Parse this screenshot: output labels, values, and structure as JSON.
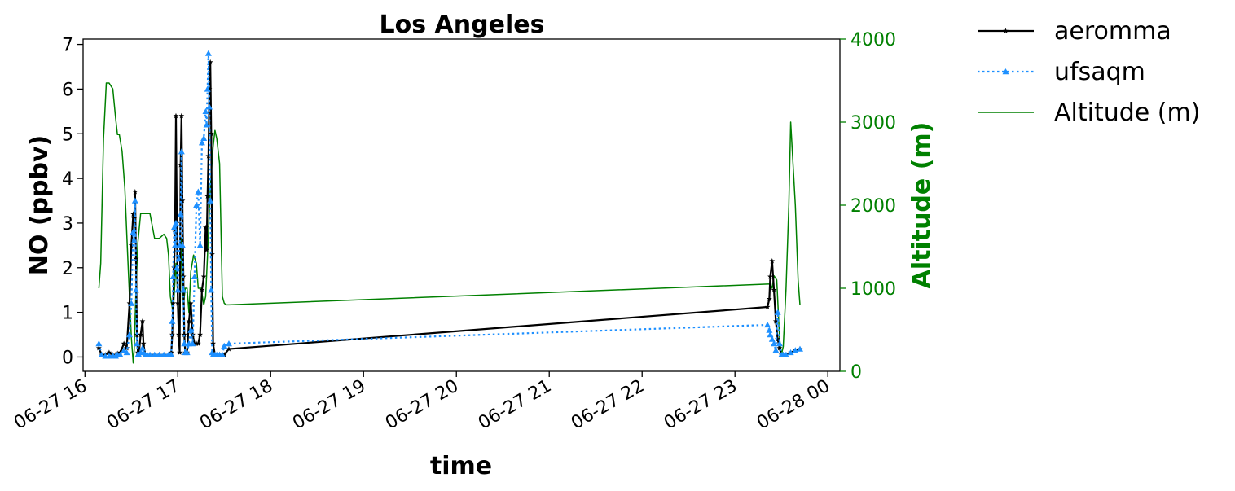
{
  "chart_data": {
    "type": "line",
    "title": "Los Angeles",
    "xlabel": "time",
    "ylabel": "NO (ppbv)",
    "y2label": "Altitude (m)",
    "x_domain_hours": [
      15.98,
      24.13
    ],
    "ylim": [
      -0.32,
      7.12
    ],
    "y2lim": [
      0,
      4000
    ],
    "x_ticks": [
      {
        "hour": 16,
        "label": "06-27 16"
      },
      {
        "hour": 17,
        "label": "06-27 17"
      },
      {
        "hour": 18,
        "label": "06-27 18"
      },
      {
        "hour": 19,
        "label": "06-27 19"
      },
      {
        "hour": 20,
        "label": "06-27 20"
      },
      {
        "hour": 21,
        "label": "06-27 21"
      },
      {
        "hour": 22,
        "label": "06-27 22"
      },
      {
        "hour": 23,
        "label": "06-27 23"
      },
      {
        "hour": 24,
        "label": "06-28 00"
      }
    ],
    "y_ticks": [
      0,
      1,
      2,
      3,
      4,
      5,
      6,
      7
    ],
    "y2_ticks": [
      0,
      1000,
      2000,
      3000,
      4000
    ],
    "legend_position": "outside-top-right",
    "grid": false,
    "series": [
      {
        "name": "aeromma",
        "axis": "left",
        "color": "#000000",
        "linestyle": "solid",
        "marker": "star",
        "x": [
          16.15,
          16.18,
          16.22,
          16.26,
          16.3,
          16.33,
          16.35,
          16.38,
          16.42,
          16.45,
          16.48,
          16.5,
          16.52,
          16.53,
          16.54,
          16.55,
          16.56,
          16.57,
          16.58,
          16.6,
          16.62,
          16.63,
          16.65,
          16.67,
          16.7,
          16.75,
          16.8,
          16.85,
          16.9,
          16.92,
          16.93,
          16.94,
          16.95,
          16.96,
          16.97,
          16.98,
          16.99,
          17.0,
          17.01,
          17.02,
          17.03,
          17.04,
          17.05,
          17.06,
          17.07,
          17.08,
          17.1,
          17.12,
          17.14,
          17.16,
          17.18,
          17.2,
          17.22,
          17.24,
          17.26,
          17.28,
          17.3,
          17.31,
          17.32,
          17.33,
          17.34,
          17.35,
          17.36,
          17.37,
          17.38,
          17.4,
          17.42,
          17.45,
          17.48,
          17.5,
          17.55,
          23.35,
          23.37,
          23.38,
          23.4,
          23.42,
          23.44,
          23.46,
          23.48,
          23.5,
          23.52,
          23.55,
          23.6,
          23.65,
          23.7
        ],
        "y": [
          0.2,
          0.05,
          0.05,
          0.1,
          0.05,
          0.05,
          0.08,
          0.1,
          0.3,
          0.2,
          1.2,
          2.5,
          3.2,
          3.1,
          3.7,
          2.2,
          0.5,
          0.1,
          0.05,
          0.5,
          0.8,
          0.3,
          0.05,
          0.05,
          0.05,
          0.05,
          0.05,
          0.05,
          0.05,
          0.05,
          0.1,
          0.5,
          1.2,
          2.0,
          2.8,
          5.4,
          3.0,
          1.2,
          0.5,
          0.1,
          4.3,
          5.4,
          3.5,
          1.8,
          0.5,
          0.1,
          0.1,
          0.8,
          1.2,
          0.5,
          0.3,
          0.3,
          0.3,
          0.5,
          1.5,
          1.8,
          2.9,
          2.4,
          3.6,
          4.5,
          6.0,
          6.6,
          5.0,
          2.3,
          0.3,
          0.05,
          0.05,
          0.05,
          0.05,
          0.05,
          0.18,
          1.12,
          1.3,
          1.8,
          2.15,
          1.5,
          0.8,
          0.4,
          0.2,
          0.05,
          0.05,
          0.05,
          0.1,
          0.15,
          0.18
        ]
      },
      {
        "name": "ufsaqm",
        "axis": "left",
        "color": "#1e90ff",
        "linestyle": "dotted",
        "marker": "triangle",
        "x": [
          16.15,
          16.18,
          16.22,
          16.26,
          16.3,
          16.33,
          16.35,
          16.38,
          16.42,
          16.45,
          16.48,
          16.5,
          16.52,
          16.53,
          16.54,
          16.55,
          16.56,
          16.57,
          16.58,
          16.6,
          16.62,
          16.63,
          16.65,
          16.67,
          16.7,
          16.75,
          16.8,
          16.85,
          16.9,
          16.92,
          16.93,
          16.94,
          16.95,
          16.96,
          16.97,
          16.98,
          16.99,
          17.0,
          17.01,
          17.02,
          17.03,
          17.04,
          17.05,
          17.06,
          17.07,
          17.08,
          17.1,
          17.12,
          17.14,
          17.16,
          17.18,
          17.2,
          17.22,
          17.24,
          17.26,
          17.28,
          17.3,
          17.31,
          17.32,
          17.33,
          17.34,
          17.35,
          17.36,
          17.37,
          17.38,
          17.4,
          17.42,
          17.45,
          17.48,
          17.5,
          17.55,
          23.35,
          23.37,
          23.38,
          23.4,
          23.42,
          23.44,
          23.46,
          23.48,
          23.5,
          23.52,
          23.55,
          23.6,
          23.65,
          23.7
        ],
        "y": [
          0.3,
          0.05,
          0.02,
          0.02,
          0.03,
          0.02,
          0.05,
          0.05,
          0.15,
          0.1,
          0.5,
          1.2,
          2.8,
          2.6,
          3.5,
          1.5,
          0.3,
          0.05,
          0.05,
          0.1,
          0.2,
          0.1,
          0.05,
          0.05,
          0.05,
          0.05,
          0.05,
          0.05,
          0.05,
          0.05,
          0.05,
          0.8,
          1.8,
          2.9,
          2.5,
          3.0,
          2.0,
          1.5,
          2.2,
          2.5,
          3.2,
          4.6,
          2.5,
          1.5,
          0.3,
          0.1,
          0.1,
          0.3,
          0.6,
          0.3,
          1.8,
          3.4,
          3.7,
          2.5,
          4.8,
          4.9,
          5.5,
          5.2,
          6.0,
          6.8,
          5.6,
          3.5,
          1.5,
          0.1,
          0.05,
          0.05,
          0.05,
          0.05,
          0.05,
          0.25,
          0.3,
          0.72,
          0.6,
          0.5,
          0.4,
          0.3,
          0.15,
          1.0,
          0.3,
          0.05,
          0.05,
          0.05,
          0.1,
          0.15,
          0.18
        ]
      },
      {
        "name": "Altitude (m)",
        "axis": "right",
        "color": "#008000",
        "linestyle": "solid",
        "marker": "none",
        "x": [
          16.15,
          16.17,
          16.2,
          16.23,
          16.26,
          16.3,
          16.33,
          16.35,
          16.37,
          16.4,
          16.43,
          16.46,
          16.5,
          16.52,
          16.53,
          16.55,
          16.57,
          16.6,
          16.65,
          16.7,
          16.75,
          16.8,
          16.85,
          16.88,
          16.9,
          16.92,
          16.95,
          16.98,
          17.0,
          17.02,
          17.04,
          17.06,
          17.08,
          17.1,
          17.12,
          17.14,
          17.17,
          17.2,
          17.22,
          17.25,
          17.28,
          17.3,
          17.32,
          17.35,
          17.38,
          17.4,
          17.42,
          17.45,
          17.48,
          17.5,
          17.52,
          17.55,
          23.35,
          23.38,
          23.4,
          23.42,
          23.45,
          23.48,
          23.5,
          23.52,
          23.55,
          23.58,
          23.6,
          23.62,
          23.65,
          23.68,
          23.7
        ],
        "y": [
          1000,
          1300,
          2800,
          3470,
          3470,
          3400,
          3050,
          2850,
          2850,
          2650,
          2200,
          1400,
          400,
          100,
          250,
          1000,
          1550,
          1900,
          1900,
          1900,
          1600,
          1600,
          1650,
          1600,
          1400,
          900,
          700,
          1300,
          900,
          500,
          1600,
          800,
          1000,
          1000,
          700,
          1200,
          1400,
          1300,
          1000,
          1000,
          800,
          900,
          1400,
          2200,
          2700,
          2900,
          2800,
          2500,
          900,
          820,
          800,
          800,
          1050,
          1050,
          1000,
          1150,
          1100,
          400,
          200,
          300,
          1000,
          2000,
          3000,
          2600,
          2000,
          1100,
          800
        ]
      }
    ]
  }
}
